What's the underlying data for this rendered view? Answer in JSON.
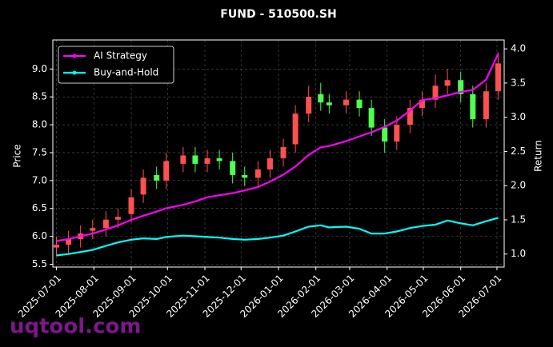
{
  "chart_data": {
    "type": "candlestick",
    "title": "FUND - 510500.SH",
    "ylabel": "Price",
    "y2label": "Return",
    "watermark": "uqtool.com",
    "x": [
      "2025-07-01",
      "2025-07-11",
      "2025-07-21",
      "2025-07-31",
      "2025-08-11",
      "2025-08-21",
      "2025-09-01",
      "2025-09-11",
      "2025-09-22",
      "2025-09-30",
      "2025-10-14",
      "2025-10-24",
      "2025-11-03",
      "2025-11-13",
      "2025-11-24",
      "2025-12-04",
      "2025-12-15",
      "2025-12-25",
      "2026-01-05",
      "2026-01-15",
      "2026-01-26",
      "2026-02-05",
      "2026-02-12",
      "2026-02-26",
      "2026-03-09",
      "2026-03-19",
      "2026-03-30",
      "2026-04-09",
      "2026-04-20",
      "2026-04-30",
      "2026-05-11",
      "2026-05-21",
      "2026-06-01",
      "2026-06-11",
      "2026-06-22",
      "2026-07-02"
    ],
    "open": [
      5.8,
      5.85,
      5.95,
      6.1,
      6.15,
      6.3,
      6.4,
      6.75,
      7.1,
      7.0,
      7.3,
      7.45,
      7.3,
      7.4,
      7.35,
      7.1,
      7.05,
      7.2,
      7.4,
      7.65,
      8.2,
      8.55,
      8.4,
      8.35,
      8.45,
      8.3,
      7.95,
      7.7,
      8.0,
      8.3,
      8.45,
      8.7,
      8.8,
      8.55,
      8.1,
      8.6
    ],
    "high": [
      6.0,
      6.1,
      6.2,
      6.3,
      6.45,
      6.5,
      6.85,
      7.2,
      7.25,
      7.5,
      7.6,
      7.6,
      7.55,
      7.55,
      7.5,
      7.25,
      7.35,
      7.55,
      7.75,
      8.35,
      8.7,
      8.75,
      8.55,
      8.6,
      8.6,
      8.45,
      8.1,
      8.15,
      8.45,
      8.6,
      8.9,
      9.0,
      8.95,
      8.7,
      8.75,
      9.3
    ],
    "low": [
      5.65,
      5.7,
      5.8,
      5.95,
      6.0,
      6.15,
      6.25,
      6.6,
      6.85,
      6.85,
      7.15,
      7.15,
      7.15,
      7.2,
      6.95,
      6.9,
      6.9,
      7.05,
      7.25,
      7.5,
      8.05,
      8.25,
      8.2,
      8.2,
      8.15,
      7.8,
      7.5,
      7.55,
      7.85,
      8.15,
      8.3,
      8.55,
      8.4,
      7.95,
      7.95,
      8.45
    ],
    "close": [
      5.85,
      5.95,
      6.05,
      6.15,
      6.3,
      6.35,
      6.7,
      7.05,
      7.0,
      7.35,
      7.45,
      7.3,
      7.4,
      7.35,
      7.1,
      7.05,
      7.2,
      7.4,
      7.6,
      8.2,
      8.5,
      8.4,
      8.35,
      8.45,
      8.3,
      7.95,
      7.7,
      8.0,
      8.3,
      8.45,
      8.7,
      8.8,
      8.55,
      8.1,
      8.6,
      9.1
    ],
    "up_color": "#ff5050",
    "down_color": "#50ff50",
    "series": [
      {
        "name": "AI Strategy",
        "color": "#ff00ff",
        "axis": "y2",
        "values": [
          1.19,
          1.22,
          1.26,
          1.3,
          1.36,
          1.42,
          1.5,
          1.56,
          1.62,
          1.67,
          1.72,
          1.77,
          1.83,
          1.86,
          1.89,
          1.93,
          1.98,
          2.06,
          2.16,
          2.28,
          2.45,
          2.56,
          2.58,
          2.65,
          2.72,
          2.78,
          2.86,
          2.95,
          3.1,
          3.25,
          3.28,
          3.32,
          3.37,
          3.4,
          3.55,
          3.93
        ]
      },
      {
        "name": "Buy-and-Hold",
        "color": "#00ffff",
        "axis": "y2",
        "values": [
          0.98,
          1.0,
          1.03,
          1.06,
          1.12,
          1.17,
          1.21,
          1.23,
          1.22,
          1.25,
          1.27,
          1.26,
          1.25,
          1.24,
          1.22,
          1.21,
          1.22,
          1.24,
          1.27,
          1.33,
          1.4,
          1.42,
          1.39,
          1.4,
          1.37,
          1.3,
          1.3,
          1.33,
          1.38,
          1.41,
          1.43,
          1.49,
          1.45,
          1.42,
          1.48,
          1.53
        ]
      }
    ],
    "xlim": [
      "2025-06-28",
      "2026-07-07"
    ],
    "xticks": [
      "2025-07-01",
      "2025-08-01",
      "2025-09-01",
      "2025-10-01",
      "2025-11-01",
      "2025-12-01",
      "2026-01-01",
      "2026-02-01",
      "2026-03-01",
      "2026-04-01",
      "2026-05-01",
      "2026-06-01",
      "2026-07-01"
    ],
    "ylim": [
      5.45,
      9.52
    ],
    "yticks": [
      5.5,
      {
        "value": 6,
        "label": "6.0"
      },
      6.5,
      {
        "value": 7,
        "label": "7.0"
      },
      7.5,
      {
        "value": 8,
        "label": "8.0"
      },
      8.5,
      {
        "value": 9,
        "label": "9.0"
      }
    ],
    "y2lim": [
      0.81,
      4.13
    ],
    "y2ticks": [
      {
        "value": 1,
        "label": "1.0"
      },
      1.5,
      {
        "value": 2,
        "label": "2.0"
      },
      2.5,
      {
        "value": 3,
        "label": "3.0"
      },
      3.5,
      {
        "value": 4,
        "label": "4.0"
      }
    ],
    "grid": true,
    "legend": "upper left"
  }
}
